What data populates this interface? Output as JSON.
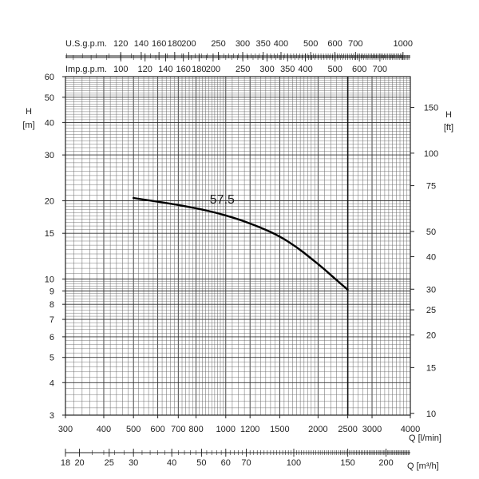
{
  "chart_data": {
    "type": "line",
    "xscale": "log",
    "yscale": "log",
    "grid": true,
    "xlim": [
      300,
      4000
    ],
    "ylim": [
      3,
      60
    ],
    "x_ticks": [
      300,
      400,
      500,
      600,
      700,
      800,
      1000,
      1200,
      1500,
      2000,
      2500,
      3000,
      4000
    ],
    "y_ticks": [
      3,
      4,
      5,
      6,
      7,
      8,
      9,
      10,
      15,
      20,
      30,
      40,
      50,
      60
    ],
    "xlabel": "Q [l/min]",
    "ylabel_left": "H [m]",
    "ylabel_right": "H [ft]",
    "right_ticks_ft": [
      10,
      15,
      20,
      25,
      30,
      40,
      50,
      75,
      100,
      150
    ],
    "top_axis_usgpm": {
      "label": "U.S.g.p.m.",
      "ticks": [
        120,
        140,
        160,
        180,
        200,
        250,
        300,
        350,
        400,
        500,
        600,
        700,
        1000
      ]
    },
    "top_axis_impgpm": {
      "label": "Imp.g.p.m.",
      "ticks": [
        100,
        120,
        140,
        160,
        180,
        200,
        250,
        300,
        350,
        400,
        500,
        600,
        700
      ]
    },
    "bottom_axis_m3h": {
      "label": "Q [m³/h]",
      "ticks": [
        18,
        20,
        25,
        30,
        40,
        50,
        60,
        70,
        100,
        150,
        200
      ]
    },
    "vertical_marker_x": 2500,
    "series": [
      {
        "name": "57.5",
        "x": [
          500,
          700,
          900,
          1100,
          1300,
          1500,
          1700,
          1900,
          2100,
          2300,
          2500
        ],
        "y": [
          20.5,
          19.3,
          18.2,
          17.0,
          15.8,
          14.6,
          13.3,
          12.0,
          10.9,
          9.9,
          9.1
        ]
      }
    ]
  }
}
